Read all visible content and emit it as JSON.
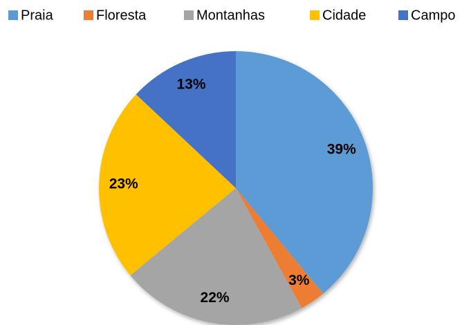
{
  "chart_data": {
    "type": "pie",
    "categories": [
      "Praia",
      "Floresta",
      "Montanhas",
      "Cidade",
      "Campo"
    ],
    "values": [
      39,
      3,
      22,
      23,
      13
    ],
    "value_labels": [
      "39%",
      "3%",
      "22%",
      "23%",
      "13%"
    ],
    "colors": [
      "#5b9bd5",
      "#ed7d31",
      "#a5a5a5",
      "#ffc000",
      "#4472c4"
    ],
    "legend": "top"
  }
}
